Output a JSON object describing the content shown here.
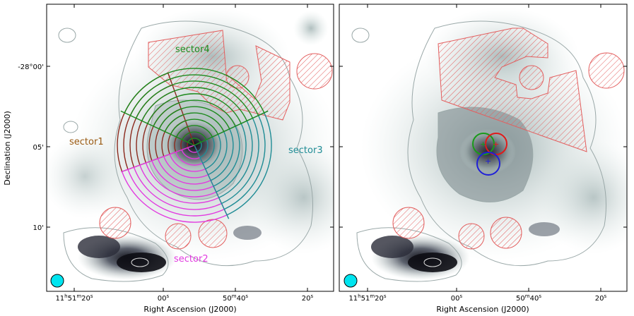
{
  "figure": {
    "panels": [
      {
        "id": "left",
        "xlabel": "Right Ascension (J2000)",
        "ylabel": "Declination (J2000)",
        "x_ticks": [
          {
            "main": "11",
            "h": "h",
            "m_val": "51",
            "m": "m",
            "s_val": "20",
            "s": "s"
          },
          {
            "text": "00",
            "sup": "s"
          },
          {
            "main": "50",
            "sup": "m",
            "tail": "40",
            "sup2": "s"
          },
          {
            "text": "20",
            "sup": "s"
          }
        ],
        "y_ticks": [
          "-28°00'",
          "05'",
          "10'"
        ],
        "sectors": [
          {
            "name": "sector1",
            "color": "#8b2a1e",
            "label_color": "#9a5a12"
          },
          {
            "name": "sector2",
            "color": "#e23ae0",
            "label_color": "#e23ae0"
          },
          {
            "name": "sector3",
            "color": "#1f8c95",
            "label_color": "#1f8c95"
          },
          {
            "name": "sector4",
            "color": "#1d8a1d",
            "label_color": "#1d8a1d"
          }
        ]
      },
      {
        "id": "right",
        "xlabel": "Right Ascension (J2000)",
        "x_ticks": [
          {
            "main": "11",
            "h": "h",
            "m_val": "51",
            "m": "m",
            "s_val": "20",
            "s": "s"
          },
          {
            "text": "00",
            "sup": "s"
          },
          {
            "main": "50",
            "sup": "m",
            "tail": "40",
            "sup2": "s"
          },
          {
            "text": "20",
            "sup": "s"
          }
        ],
        "circles": [
          {
            "color": "#1a9a1a"
          },
          {
            "color": "#e11a1a"
          },
          {
            "color": "#1f1fd8"
          }
        ]
      }
    ],
    "colors": {
      "mask_hatch": "#e35e5e",
      "beam": "#00e5f0",
      "contour": "#9aa8a8"
    }
  }
}
